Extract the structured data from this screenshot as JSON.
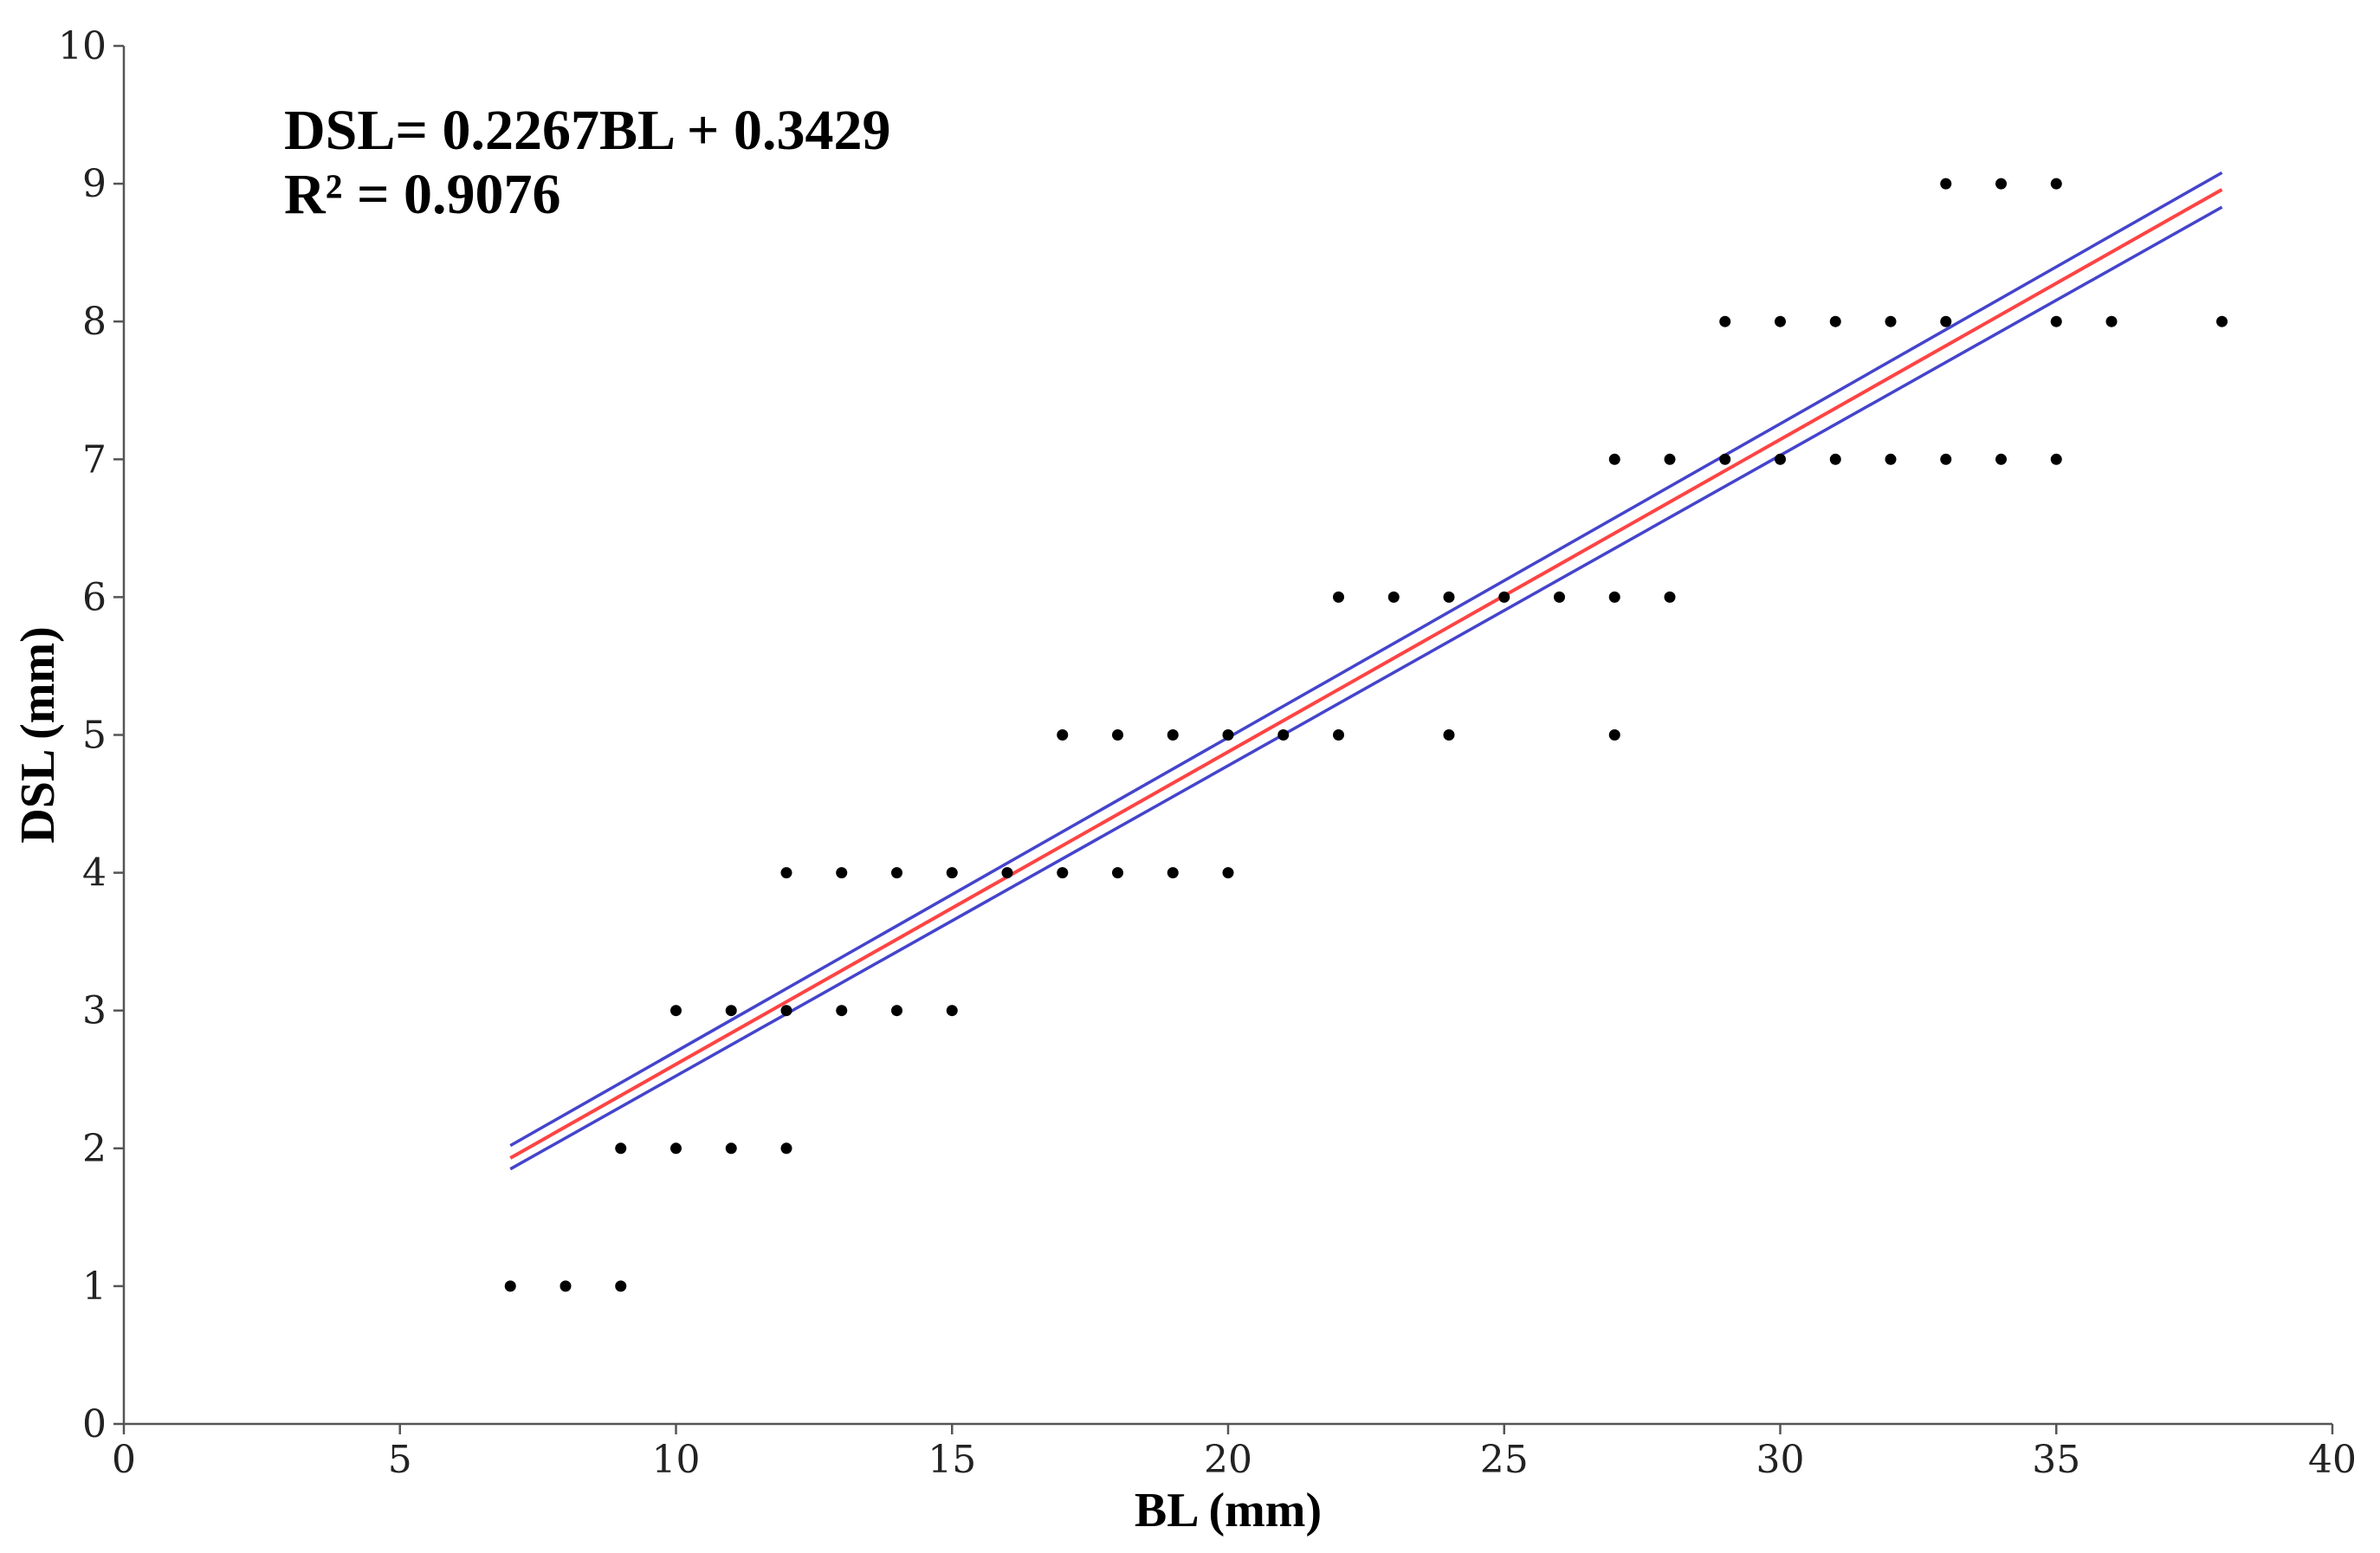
{
  "chart_data": {
    "type": "scatter",
    "title": "",
    "xlabel": "BL (mm)",
    "ylabel": "DSL (mm)",
    "xlim": [
      0,
      40
    ],
    "ylim": [
      0,
      10
    ],
    "x_ticks": [
      "0",
      "5",
      "10",
      "15",
      "20",
      "25",
      "30",
      "35",
      "40"
    ],
    "y_ticks": [
      "0",
      "1",
      "2",
      "3",
      "4",
      "5",
      "6",
      "7",
      "8",
      "9",
      "10"
    ],
    "grid": false,
    "annotations": {
      "equation": "DSL= 0.2267BL + 0.3429",
      "r_squared": "R² = 0.9076"
    },
    "point_color": "#000000",
    "points": [
      [
        7,
        1
      ],
      [
        8,
        1
      ],
      [
        9,
        1
      ],
      [
        9,
        2
      ],
      [
        10,
        2
      ],
      [
        11,
        2
      ],
      [
        12,
        2
      ],
      [
        10,
        3
      ],
      [
        11,
        3
      ],
      [
        12,
        3
      ],
      [
        13,
        3
      ],
      [
        14,
        3
      ],
      [
        15,
        3
      ],
      [
        12,
        4
      ],
      [
        13,
        4
      ],
      [
        14,
        4
      ],
      [
        15,
        4
      ],
      [
        16,
        4
      ],
      [
        17,
        4
      ],
      [
        18,
        4
      ],
      [
        19,
        4
      ],
      [
        20,
        4
      ],
      [
        17,
        5
      ],
      [
        18,
        5
      ],
      [
        19,
        5
      ],
      [
        20,
        5
      ],
      [
        21,
        5
      ],
      [
        22,
        5
      ],
      [
        24,
        5
      ],
      [
        27,
        5
      ],
      [
        22,
        6
      ],
      [
        23,
        6
      ],
      [
        24,
        6
      ],
      [
        25,
        6
      ],
      [
        26,
        6
      ],
      [
        27,
        6
      ],
      [
        28,
        6
      ],
      [
        27,
        7
      ],
      [
        28,
        7
      ],
      [
        29,
        7
      ],
      [
        30,
        7
      ],
      [
        31,
        7
      ],
      [
        32,
        7
      ],
      [
        33,
        7
      ],
      [
        34,
        7
      ],
      [
        35,
        7
      ],
      [
        29,
        8
      ],
      [
        30,
        8
      ],
      [
        31,
        8
      ],
      [
        32,
        8
      ],
      [
        33,
        8
      ],
      [
        35,
        8
      ],
      [
        36,
        8
      ],
      [
        38,
        8
      ],
      [
        33,
        9
      ],
      [
        34,
        9
      ],
      [
        35,
        9
      ]
    ],
    "regression": {
      "slope": 0.2267,
      "intercept": 0.3429,
      "x_range": [
        7,
        38
      ],
      "color": "#ff4444"
    },
    "confidence_band": {
      "color": "#4444cc",
      "lower": [
        [
          7,
          1.85
        ],
        [
          38,
          8.83
        ]
      ],
      "upper": [
        [
          7,
          2.02
        ],
        [
          38,
          9.08
        ]
      ]
    }
  }
}
